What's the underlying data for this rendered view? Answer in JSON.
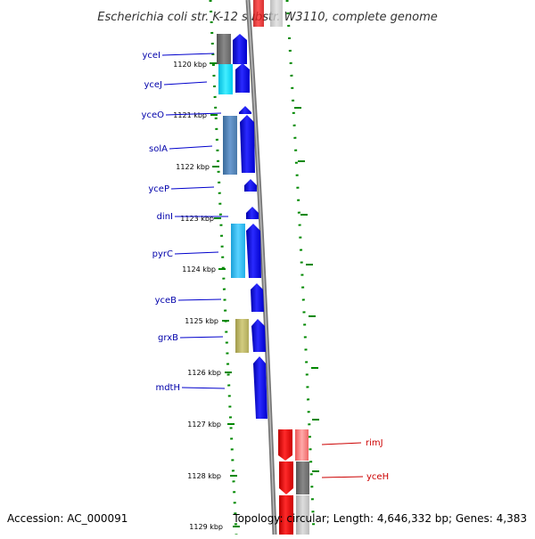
{
  "title": "Escherichia coli str. K-12 substr. W3110, complete genome",
  "accession": "Accession: AC_000091",
  "topology": "Topology: circular; Length: 4,646,332 bp; Genes: 4,383",
  "kbp_labels": [
    "1120 kbp",
    "1121 kbp",
    "1122 kbp",
    "1123 kbp",
    "1124 kbp",
    "1125 kbp",
    "1126 kbp",
    "1127 kbp",
    "1128 kbp",
    "1129 kbp"
  ],
  "genes_plus": [
    "yceI",
    "yceJ",
    "yceO",
    "solA",
    "yceP",
    "dinI",
    "pyrC",
    "yceB",
    "grxB",
    "mdtH"
  ],
  "genes_minus": [
    "rimJ",
    "yceH"
  ],
  "colors": {
    "plus_strand": "#0000ee",
    "minus_strand": "#ee0000",
    "backbone": "#888888",
    "tick": "#008800",
    "label_blue": "#0000aa",
    "label_red": "#cc0000"
  }
}
